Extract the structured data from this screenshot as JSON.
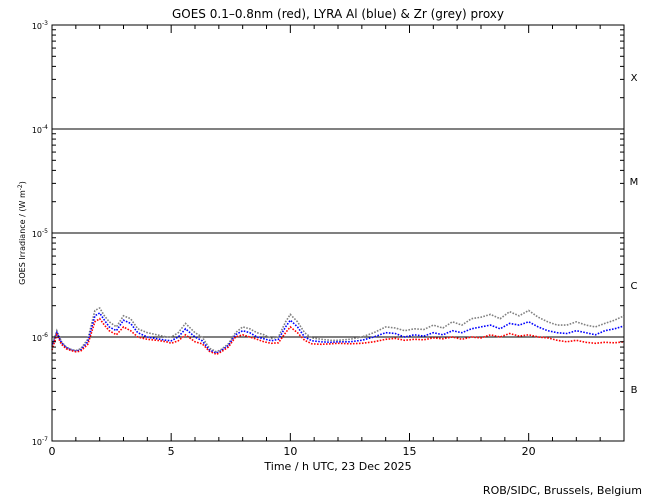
{
  "chart_data": {
    "type": "line",
    "title": "GOES 0.1–0.8nm (red), LYRA Al (blue) & Zr (grey) proxy",
    "xlabel": "Time / h UTC, 23 Dec 2025",
    "ylabel_main": "GOES Irradiance / (W m",
    "ylabel_sup": "-2",
    "ylabel_end": ")",
    "log_y": true,
    "xlim": [
      0,
      24
    ],
    "ylim": [
      1e-07,
      0.001
    ],
    "x_ticks": [
      {
        "value": 0,
        "label": "0"
      },
      {
        "value": 5,
        "label": "5"
      },
      {
        "value": 10,
        "label": "10"
      },
      {
        "value": 15,
        "label": "15"
      },
      {
        "value": 20,
        "label": "20"
      }
    ],
    "y_ticks": [
      {
        "exp": -3,
        "base": "10",
        "sup": "-3"
      },
      {
        "exp": -4,
        "base": "10",
        "sup": "-4"
      },
      {
        "exp": -5,
        "base": "10",
        "sup": "-5"
      },
      {
        "exp": -6,
        "base": "10",
        "sup": "-6"
      },
      {
        "exp": -7,
        "base": "10",
        "sup": "-7"
      }
    ],
    "flare_lines": [
      0.0001,
      1e-05,
      1e-06
    ],
    "flare_classes": [
      {
        "label": "X",
        "exp": -3.5
      },
      {
        "label": "M",
        "exp": -4.5
      },
      {
        "label": "C",
        "exp": -5.5
      },
      {
        "label": "B",
        "exp": -6.5
      }
    ],
    "series": [
      {
        "color": "#ff0000",
        "x": [
          0.0,
          0.2,
          0.4,
          0.6,
          0.8,
          1.0,
          1.2,
          1.5,
          1.8,
          2.0,
          2.2,
          2.4,
          2.7,
          3.0,
          3.3,
          3.6,
          4.0,
          4.4,
          4.8,
          5.0,
          5.3,
          5.6,
          6.0,
          6.3,
          6.6,
          6.9,
          7.1,
          7.4,
          7.7,
          8.0,
          8.3,
          8.6,
          8.9,
          9.2,
          9.5,
          9.8,
          10.0,
          10.3,
          10.6,
          10.9,
          11.3,
          11.7,
          12.0,
          12.5,
          13.0,
          13.5,
          14.0,
          14.4,
          14.8,
          15.2,
          15.6,
          16.0,
          16.4,
          16.8,
          17.2,
          17.6,
          18.0,
          18.4,
          18.8,
          19.2,
          19.6,
          20.0,
          20.4,
          20.8,
          21.2,
          21.6,
          22.0,
          22.4,
          22.8,
          23.2,
          23.6,
          24.0
        ],
        "y": [
          7.5e-07,
          1.05e-06,
          8.5e-07,
          7.7e-07,
          7.4e-07,
          7.2e-07,
          7.3e-07,
          8.5e-07,
          1.4e-06,
          1.5e-06,
          1.3e-06,
          1.15e-06,
          1.05e-06,
          1.25e-06,
          1.15e-06,
          1e-06,
          9.5e-07,
          9.3e-07,
          9e-07,
          8.7e-07,
          9.2e-07,
          1.05e-06,
          9e-07,
          8.6e-07,
          7.3e-07,
          6.8e-07,
          7.2e-07,
          8e-07,
          1e-06,
          1.05e-06,
          1e-06,
          9.5e-07,
          9e-07,
          8.7e-07,
          8.8e-07,
          1.1e-06,
          1.25e-06,
          1.1e-06,
          9.3e-07,
          8.6e-07,
          8.5e-07,
          8.6e-07,
          8.7e-07,
          8.6e-07,
          8.7e-07,
          9e-07,
          9.5e-07,
          9.7e-07,
          9.3e-07,
          9.5e-07,
          9.4e-07,
          9.8e-07,
          9.6e-07,
          1e-06,
          9.5e-07,
          1e-06,
          9.8e-07,
          1.05e-06,
          1e-06,
          1.08e-06,
          1.02e-06,
          1.05e-06,
          1e-06,
          9.8e-07,
          9.3e-07,
          9e-07,
          9.3e-07,
          8.9e-07,
          8.7e-07,
          8.9e-07,
          8.8e-07,
          9e-07
        ]
      },
      {
        "color": "#0000ff",
        "x": [
          0.0,
          0.2,
          0.4,
          0.6,
          0.8,
          1.0,
          1.2,
          1.5,
          1.8,
          2.0,
          2.2,
          2.4,
          2.7,
          3.0,
          3.3,
          3.6,
          4.0,
          4.4,
          4.8,
          5.0,
          5.3,
          5.6,
          6.0,
          6.3,
          6.6,
          6.9,
          7.1,
          7.4,
          7.7,
          8.0,
          8.3,
          8.6,
          8.9,
          9.2,
          9.5,
          9.8,
          10.0,
          10.3,
          10.6,
          10.9,
          11.3,
          11.7,
          12.0,
          12.5,
          13.0,
          13.5,
          14.0,
          14.4,
          14.8,
          15.2,
          15.6,
          16.0,
          16.4,
          16.8,
          17.2,
          17.6,
          18.0,
          18.4,
          18.8,
          19.2,
          19.6,
          20.0,
          20.4,
          20.8,
          21.2,
          21.6,
          22.0,
          22.4,
          22.8,
          23.2,
          23.6,
          24.0
        ],
        "y": [
          8e-07,
          1.1e-06,
          8.8e-07,
          7.9e-07,
          7.5e-07,
          7.3e-07,
          7.5e-07,
          9e-07,
          1.6e-06,
          1.7e-06,
          1.45e-06,
          1.25e-06,
          1.15e-06,
          1.45e-06,
          1.35e-06,
          1.1e-06,
          1e-06,
          9.6e-07,
          9.3e-07,
          9.2e-07,
          1e-06,
          1.2e-06,
          1e-06,
          9.2e-07,
          7.5e-07,
          7e-07,
          7.4e-07,
          8.3e-07,
          1.05e-06,
          1.15e-06,
          1.1e-06,
          1e-06,
          9.6e-07,
          9.2e-07,
          9.5e-07,
          1.25e-06,
          1.45e-06,
          1.25e-06,
          1e-06,
          9.2e-07,
          9e-07,
          8.9e-07,
          9e-07,
          9e-07,
          9.3e-07,
          1e-06,
          1.1e-06,
          1.08e-06,
          1e-06,
          1.05e-06,
          1.02e-06,
          1.1e-06,
          1.05e-06,
          1.15e-06,
          1.1e-06,
          1.2e-06,
          1.25e-06,
          1.3e-06,
          1.2e-06,
          1.35e-06,
          1.3e-06,
          1.4e-06,
          1.25e-06,
          1.15e-06,
          1.1e-06,
          1.08e-06,
          1.15e-06,
          1.1e-06,
          1.05e-06,
          1.15e-06,
          1.2e-06,
          1.28e-06
        ]
      },
      {
        "color": "#808080",
        "x": [
          0.0,
          0.2,
          0.4,
          0.6,
          0.8,
          1.0,
          1.2,
          1.5,
          1.8,
          2.0,
          2.2,
          2.4,
          2.7,
          3.0,
          3.3,
          3.6,
          4.0,
          4.4,
          4.8,
          5.0,
          5.3,
          5.6,
          6.0,
          6.3,
          6.6,
          6.9,
          7.1,
          7.4,
          7.7,
          8.0,
          8.3,
          8.6,
          8.9,
          9.2,
          9.5,
          9.8,
          10.0,
          10.3,
          10.6,
          10.9,
          11.3,
          11.7,
          12.0,
          12.5,
          13.0,
          13.5,
          14.0,
          14.4,
          14.8,
          15.2,
          15.6,
          16.0,
          16.4,
          16.8,
          17.2,
          17.6,
          18.0,
          18.4,
          18.8,
          19.2,
          19.6,
          20.0,
          20.4,
          20.8,
          21.2,
          21.6,
          22.0,
          22.4,
          22.8,
          23.2,
          23.6,
          24.0
        ],
        "y": [
          8.3e-07,
          1.15e-06,
          9e-07,
          8e-07,
          7.6e-07,
          7.4e-07,
          7.7e-07,
          9.5e-07,
          1.8e-06,
          1.9e-06,
          1.6e-06,
          1.4e-06,
          1.25e-06,
          1.6e-06,
          1.5e-06,
          1.2e-06,
          1.1e-06,
          1.05e-06,
          1e-06,
          1e-06,
          1.1e-06,
          1.35e-06,
          1.1e-06,
          1e-06,
          7.8e-07,
          7.2e-07,
          7.6e-07,
          8.6e-07,
          1.1e-06,
          1.25e-06,
          1.2e-06,
          1.1e-06,
          1.05e-06,
          9.7e-07,
          1e-06,
          1.4e-06,
          1.65e-06,
          1.4e-06,
          1.1e-06,
          9.8e-07,
          9.5e-07,
          9.3e-07,
          9.3e-07,
          9.5e-07,
          1e-06,
          1.1e-06,
          1.25e-06,
          1.22e-06,
          1.15e-06,
          1.2e-06,
          1.18e-06,
          1.3e-06,
          1.22e-06,
          1.4e-06,
          1.3e-06,
          1.5e-06,
          1.55e-06,
          1.65e-06,
          1.5e-06,
          1.75e-06,
          1.6e-06,
          1.8e-06,
          1.55e-06,
          1.4e-06,
          1.3e-06,
          1.3e-06,
          1.4e-06,
          1.3e-06,
          1.25e-06,
          1.35e-06,
          1.45e-06,
          1.6e-06
        ]
      }
    ]
  },
  "footer": {
    "credit": "ROB/SIDC, Brussels, Belgium"
  }
}
